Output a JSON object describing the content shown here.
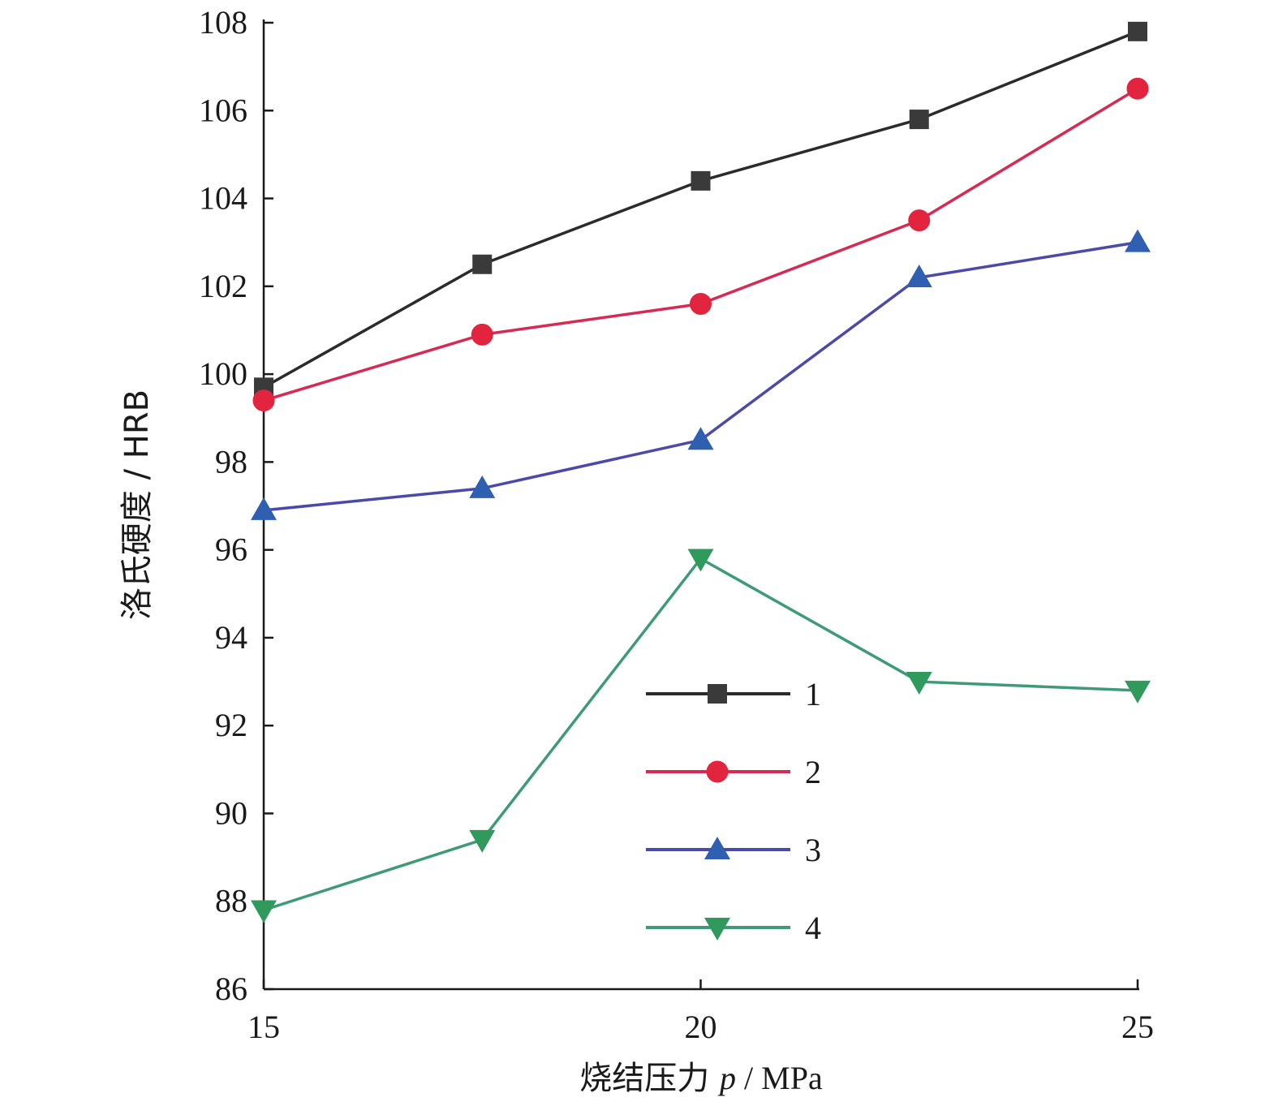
{
  "chart_data": {
    "type": "line",
    "xlabel_prefix": "烧结压力 ",
    "xlabel_var": "p",
    "xlabel_unit": " / MPa",
    "ylabel": "洛氏硬度 / HRB",
    "xlim": [
      15,
      25
    ],
    "ylim": [
      86,
      108
    ],
    "x_ticks": [
      "15",
      "20",
      "25"
    ],
    "y_ticks": [
      "86",
      "88",
      "90",
      "92",
      "94",
      "96",
      "98",
      "100",
      "102",
      "104",
      "106",
      "108"
    ],
    "x": [
      15,
      17.5,
      20,
      22.5,
      25
    ],
    "series": [
      {
        "name": "1",
        "marker": "square",
        "line_color": "#2b2b2b",
        "marker_color": "#3a3a3a",
        "values": [
          99.7,
          102.5,
          104.4,
          105.8,
          107.8
        ]
      },
      {
        "name": "2",
        "marker": "circle",
        "line_color": "#d62a52",
        "marker_color": "#e3243f",
        "values": [
          99.4,
          100.9,
          101.6,
          103.5,
          106.5
        ]
      },
      {
        "name": "3",
        "marker": "triangle-up",
        "line_color": "#4a4aa8",
        "marker_color": "#2f5fb0",
        "values": [
          96.9,
          97.4,
          98.5,
          102.2,
          103.0
        ]
      },
      {
        "name": "4",
        "marker": "triangle-down",
        "line_color": "#3f9a78",
        "marker_color": "#2f9a5c",
        "values": [
          87.8,
          89.4,
          95.8,
          93.0,
          92.8
        ]
      }
    ],
    "legend": "center-right inside plot",
    "grid": false
  }
}
